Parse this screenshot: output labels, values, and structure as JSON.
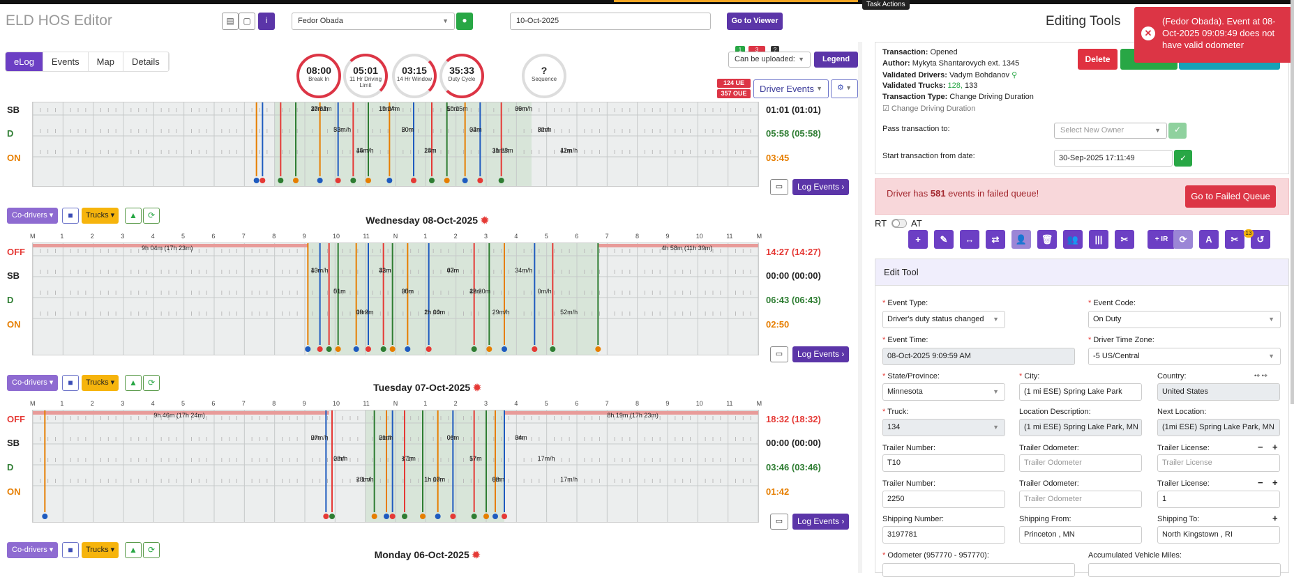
{
  "app": {
    "title": "ELD HOS Editor",
    "task_actions": "Task Actions"
  },
  "header": {
    "driver_select": "Fedor Obada",
    "date_value": "10-Oct-2025",
    "go_viewer": "Go to Viewer"
  },
  "tabs": [
    "eLog",
    "Events",
    "Map",
    "Details"
  ],
  "gauges": [
    {
      "value": "08:00",
      "label": "Break In"
    },
    {
      "value": "05:01",
      "label": "11 Hr Driving Limit"
    },
    {
      "value": "03:15",
      "label": "14 Hr Window"
    },
    {
      "value": "35:33",
      "label": "Duty Cycle"
    },
    {
      "value": "?",
      "label": "Sequence"
    }
  ],
  "upload": {
    "badge1": "1",
    "badge2": "3",
    "badge3": "?",
    "select": "Can be uploaded:",
    "legend": "Legend"
  },
  "ue": {
    "ue": "124 UE",
    "oue": "357 OUE",
    "driver_events": "Driver Events"
  },
  "hours": [
    "M",
    "1",
    "2",
    "3",
    "4",
    "5",
    "6",
    "7",
    "8",
    "9",
    "10",
    "11",
    "N",
    "1",
    "2",
    "3",
    "4",
    "5",
    "6",
    "7",
    "8",
    "9",
    "10",
    "11",
    "M"
  ],
  "rows": [
    "OFF",
    "SB",
    "D",
    "ON"
  ],
  "colors": {
    "off": "#e53935",
    "sb": "#222222",
    "d": "#2e7d32",
    "on": "#e67e00",
    "purple": "#5b35a8",
    "red": "#dc3545"
  },
  "day0": {
    "totals": {
      "sb": "01:01 (01:01)",
      "d": "05:58 (05:58)",
      "on": "03:45"
    },
    "labels": [
      "37m",
      "33m",
      "15m",
      "1h 24m",
      "50m",
      "18m",
      "1h 25m",
      "34m",
      "31m/h",
      "36m/h",
      "8m/h",
      "42m/h",
      "20m/h",
      "53m/h",
      "44m/h",
      "19m/h",
      "20m",
      "24m",
      "50m",
      "02m",
      "1h 23m",
      "09m",
      "32m",
      "11m",
      "1h 31m"
    ]
  },
  "day1": {
    "title": "Wednesday 08-Oct-2025",
    "totals": {
      "off": "14:27 (14:27)",
      "sb": "00:00 (00:00)",
      "d": "06:43 (06:43)",
      "on": "02:50"
    },
    "labels": [
      "9h 04m (17h 23m)",
      "4h 58m (11h 39m)",
      "13m",
      "51m",
      "09m",
      "42m",
      "30m",
      "2h 04m",
      "43m",
      "2h 20m",
      "29m/h",
      "34m/h",
      "0m/h",
      "52m/h",
      "40m/h",
      "01m",
      "1h 2m",
      "33m",
      "05m",
      "1h 10m",
      "07m",
      "42m"
    ]
  },
  "day2": {
    "title": "Tuesday 07-Oct-2025",
    "totals": {
      "off": "18:32 (18:32)",
      "sb": "00:00 (00:00)",
      "d": "03:46 (03:46)",
      "on": "01:42"
    },
    "labels": [
      "9h 46m (17h 24m)",
      "8h 19m (17h 23m)",
      "0m",
      "22m",
      "< 1m",
      "21m",
      "17m",
      "1h 10m",
      "06m",
      "57m",
      "8m",
      "34m",
      "17m/h",
      "17m/h",
      "27m/h",
      "0m/h",
      "28m/h",
      "0m/h",
      "< 1m",
      "1h 07m",
      "0m",
      "17m",
      "02m",
      "0m"
    ]
  },
  "day3": {
    "title": "Monday 06-Oct-2025"
  },
  "buttons": {
    "codrivers": "Co-drivers",
    "trucks": "Trucks",
    "log_events": "Log Events"
  },
  "panel": {
    "title": "Editing Tools",
    "delete": "Delete",
    "transaction_label": "Transaction:",
    "transaction": "Opened",
    "author_label": "Author:",
    "author": "Mykyta Shantarovych ext. 1345",
    "vdrivers_label": "Validated Drivers:",
    "vdrivers": "Vadym Bohdanov",
    "vtrucks_label": "Validated Trucks:",
    "vtrucks_a": "128,",
    "vtrucks_b": " 133",
    "ttype_label": "Transaction Type:",
    "ttype": "Change Driving Duration",
    "check_label": "Change Driving Duration",
    "pass_label": "Pass transaction to:",
    "pass_ph": "Select New Owner",
    "start_label": "Start transaction from date:",
    "start_val": "30-Sep-2025 17:11:49",
    "failed_text_a": "Driver has ",
    "failed_count": "581",
    "failed_text_b": " events in failed queue!",
    "failed_btn": "Go to Failed Queue",
    "rt": "RT",
    "at": "AT",
    "toolbar": [
      "+",
      "✎",
      "↔",
      "⇄",
      "👤",
      "🗑",
      "👥",
      "|||",
      "✂",
      "+ IR",
      "⟳",
      "A",
      "✂",
      "↺"
    ],
    "toolbar_badge": "13",
    "edit_tool": "Edit Tool"
  },
  "toast": {
    "text": "(Fedor Obada). Event at 08-Oct-2025 09:09:49 does not have valid odometer"
  },
  "form": {
    "event_type_label": "Event Type:",
    "event_type": "Driver's duty status changed",
    "event_code_label": "Event Code:",
    "event_code": "On Duty",
    "event_time_label": "Event Time:",
    "event_time": "08-Oct-2025 9:09:59 AM",
    "tz_label": "Driver Time Zone:",
    "tz": "-5 US/Central",
    "state_label": "State/Province:",
    "state": "Minnesota",
    "city_label": "City:",
    "city": "(1 mi ESE) Spring Lake Park",
    "country_label": "Country:",
    "country": "United States",
    "truck_label": "Truck:",
    "truck": "134",
    "locdesc_label": "Location Description:",
    "locdesc": "(1 mi ESE) Spring Lake Park, MN",
    "nextloc_label": "Next Location:",
    "nextloc": "(1mi ESE) Spring Lake Park, MN",
    "trailer_num_label": "Trailer Number:",
    "trailer_num1": "T10",
    "trailer_num2": "2250",
    "trailer_odo_label": "Trailer Odometer:",
    "trailer_odo_ph": "Trailer Odometer",
    "trailer_lic_label": "Trailer License:",
    "trailer_lic_ph": "Trailer License",
    "trailer_lic2": "1",
    "ship_num_label": "Shipping Number:",
    "ship_num": "3197781",
    "ship_from_label": "Shipping From:",
    "ship_from": "Princeton , MN",
    "ship_to_label": "Shipping To:",
    "ship_to": "North Kingstown , RI",
    "odo_label": "Odometer (957770 - 957770):",
    "acc_label": "Accumulated Vehicle Miles:"
  }
}
